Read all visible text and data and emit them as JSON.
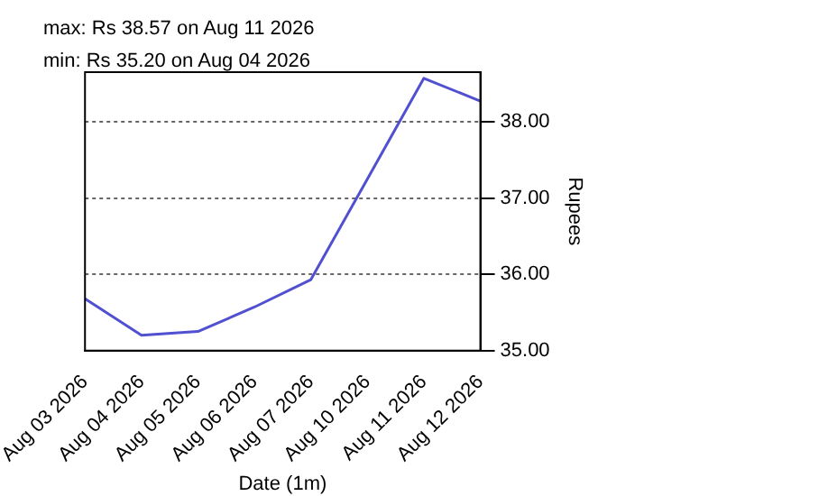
{
  "chart_data": {
    "type": "line",
    "annotations": [
      "max: Rs 38.57 on Aug 11 2026",
      "min: Rs 35.20 on Aug 04 2026"
    ],
    "xlabel": "Date (1m)",
    "ylabel": "Rupees",
    "categories": [
      "Aug 03 2026",
      "Aug 04 2026",
      "Aug 05 2026",
      "Aug 06 2026",
      "Aug 07 2026",
      "Aug 10 2026",
      "Aug 11 2026",
      "Aug 12 2026"
    ],
    "series": [
      {
        "color": "#5050d0",
        "values": [
          35.68,
          35.2,
          35.25,
          35.57,
          35.93,
          37.25,
          38.57,
          38.27
        ]
      }
    ],
    "ylim": [
      35,
      38.65
    ],
    "yticks": [
      {
        "value": 35,
        "label": "35.00"
      },
      {
        "value": 36,
        "label": "36.00"
      },
      {
        "value": 37,
        "label": "37.00"
      },
      {
        "value": 38,
        "label": "38.00"
      }
    ],
    "grid": "y",
    "marker": "none",
    "line_style": "solid",
    "legend": false
  }
}
